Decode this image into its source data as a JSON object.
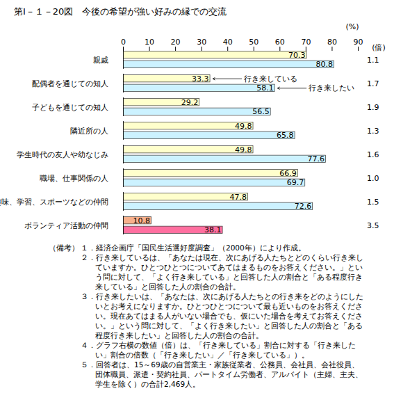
{
  "chart_data": {
    "type": "bar",
    "orientation": "horizontal",
    "title": "第Ⅰ－１－20図　今後の希望が強い好みの縁での交流",
    "x_unit_label": "(%)",
    "categories": [
      "親戚",
      "配偶者を通じての知人",
      "子どもを通じての知人",
      "隣近所の人",
      "学生時代の友人や幼なじみ",
      "職場、仕事関係の人",
      "趣味、学習、スポーツなどの仲間",
      "ボランティア活動の仲間"
    ],
    "series": [
      {
        "name": "行き来している",
        "values": [
          70.3,
          33.3,
          29.2,
          49.8,
          49.8,
          66.9,
          47.8,
          10.8
        ],
        "colors": [
          "#ffffcc",
          "#ffffcc",
          "#ffffcc",
          "#ffffcc",
          "#ffffcc",
          "#ffffcc",
          "#ffffcc",
          "#f8b08c"
        ]
      },
      {
        "name": "行き来したい",
        "values": [
          80.8,
          58.1,
          56.5,
          65.8,
          77.6,
          69.7,
          72.6,
          38.1
        ],
        "colors": [
          "#ccf2ff",
          "#ccf2ff",
          "#ccf2ff",
          "#ccf2ff",
          "#ccf2ff",
          "#ccf2ff",
          "#ccf2ff",
          "#ff6f9f"
        ]
      }
    ],
    "ratio_unit_label": "(倍)",
    "ratios": [
      1.1,
      1.7,
      1.9,
      1.3,
      1.6,
      1.0,
      1.5,
      3.5
    ],
    "ratio_labels": [
      "1.1",
      "1.7",
      "1.9",
      "1.3",
      "1.6",
      "1.0",
      "1.5",
      "3.5"
    ],
    "annotations": [
      {
        "text": "行き来している",
        "category": "配偶者を通じての知人",
        "series": "行き来している"
      },
      {
        "text": "行き来したい",
        "category": "配偶者を通じての知人",
        "series": "行き来したい"
      }
    ],
    "xlim": [
      0,
      90
    ],
    "xticks": [
      0,
      10,
      20,
      30,
      40,
      50,
      60,
      70,
      80,
      90
    ],
    "data_labels": true,
    "grid": false,
    "notes_label": "（備考）",
    "notes": [
      "１．経済企画庁「国民生活選好度調査」（2000年）により作成。",
      "２．行き来しているは、「あなたは現在、次にあげる人たちとどのくらい行き来していますか。ひとつひとつについてあてはまるものをお答えください。」という問に対して、「よく行き来している」と回答した人の割合と「ある程度行き来している」と回答した人の割合の合計。",
      "３．行き来したいは、「あなたは、次にあげる人たちとの行き来をどのようにしたいとお考えになりますか。ひとつひとつについて最も近いものをお答えください。現在あてはまる人がいない場合でも、仮にいた場合を考えてお答えください。」という問に対して、「よく行き来したい」と回答した人の割合と「ある程度行き来したい」と回答した人の割合の合計。",
      "４．グラフ右横の数値（倍）は、「行き来している」割合に対する「行き来したい」割合の倍数（「行き来したい」／「行き来している」）。",
      "５．回答者は、15～69歳の自営業主・家族従業者、公務員、会社員、会社役員、団体職員、派遣・契約社員、パートタイム労働者、アルバイト（主婦、主夫、学生を除く）の合計2,469人。"
    ]
  }
}
